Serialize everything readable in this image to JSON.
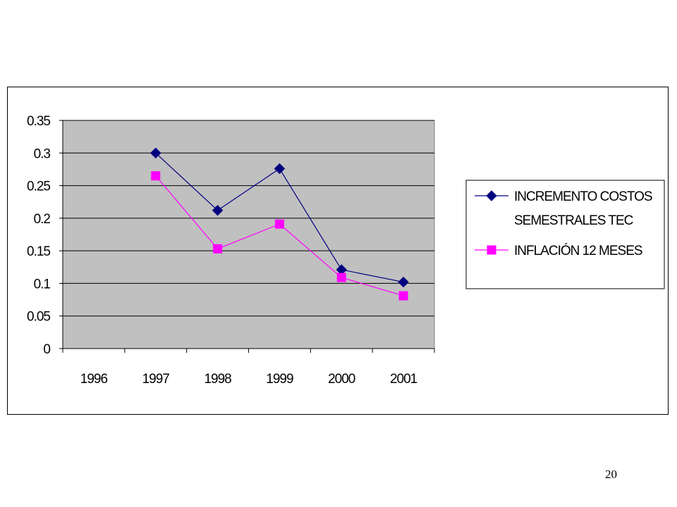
{
  "page": {
    "number": "20"
  },
  "chart_data": {
    "type": "line",
    "categories": [
      "1996",
      "1997",
      "1998",
      "1999",
      "2000",
      "2001"
    ],
    "ylim": [
      0,
      0.35
    ],
    "yticks": [
      "0",
      "0.05",
      "0.1",
      "0.15",
      "0.2",
      "0.25",
      "0.3",
      "0.35"
    ],
    "grid": true,
    "legend_position": "right",
    "plot_background": "#c0c0c0",
    "series": [
      {
        "name_lines": [
          "INCREMENTO COSTOS",
          "SEMESTRALES TEC"
        ],
        "color": "#000080",
        "marker": "diamond",
        "values": [
          null,
          0.3,
          0.212,
          0.276,
          0.121,
          0.102
        ]
      },
      {
        "name_lines": [
          "INFLACIÓN 12 MESES"
        ],
        "color": "#ff00ff",
        "marker": "square",
        "values": [
          null,
          0.265,
          0.153,
          0.191,
          0.109,
          0.081
        ]
      }
    ]
  }
}
